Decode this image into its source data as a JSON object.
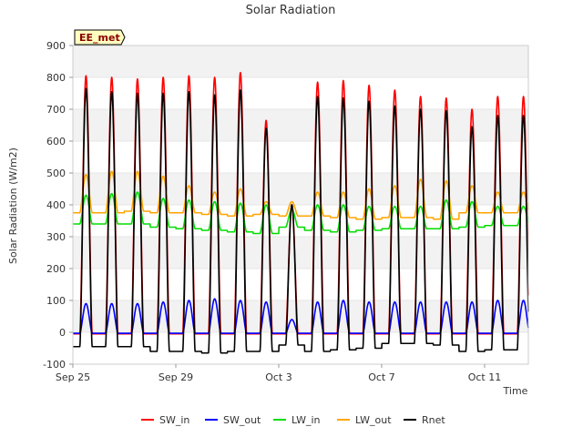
{
  "chart_data": {
    "type": "line",
    "title": "Solar Radiation",
    "xlabel": "Time",
    "ylabel": "Solar Radiation (W/m2)",
    "site_badge": "EE_met",
    "ylim": [
      -100,
      900
    ],
    "yticks": [
      -100,
      0,
      100,
      200,
      300,
      400,
      500,
      600,
      700,
      800,
      900
    ],
    "xlim": [
      0,
      17.7
    ],
    "xticks": [
      {
        "label": "Sep 25",
        "day": 0
      },
      {
        "label": "Sep 29",
        "day": 4
      },
      {
        "label": "Oct 3",
        "day": 8
      },
      {
        "label": "Oct 7",
        "day": 12
      },
      {
        "label": "Oct 11",
        "day": 16
      }
    ],
    "grid": "horizontal bands",
    "legend_position": "bottom",
    "series": [
      {
        "name": "SW_in",
        "color": "#ff0000",
        "night": -5,
        "peaks": [
          805,
          800,
          795,
          800,
          805,
          800,
          815,
          665,
          400,
          785,
          790,
          775,
          760,
          740,
          735,
          700,
          740
        ]
      },
      {
        "name": "SW_out",
        "color": "#0000ff",
        "night": -3,
        "peaks": [
          90,
          90,
          90,
          95,
          100,
          105,
          100,
          95,
          40,
          95,
          100,
          95,
          95,
          95,
          95,
          95,
          100
        ]
      },
      {
        "name": "LW_in",
        "color": "#00dd00",
        "night": [
          340,
          340,
          340,
          330,
          325,
          320,
          315,
          310,
          330,
          320,
          315,
          320,
          325,
          325,
          325,
          330,
          335
        ],
        "peaks": [
          430,
          435,
          440,
          420,
          415,
          410,
          405,
          400,
          385,
          400,
          400,
          395,
          395,
          395,
          415,
          410,
          395
        ]
      },
      {
        "name": "LW_out",
        "color": "#ffa500",
        "night": [
          375,
          375,
          380,
          375,
          375,
          370,
          365,
          370,
          365,
          365,
          360,
          355,
          360,
          360,
          355,
          375,
          375
        ],
        "peaks": [
          495,
          505,
          505,
          490,
          460,
          440,
          450,
          410,
          410,
          440,
          440,
          450,
          460,
          480,
          475,
          460,
          440
        ]
      },
      {
        "name": "Rnet",
        "color": "#000000",
        "night": [
          -45,
          -45,
          -45,
          -60,
          -60,
          -65,
          -60,
          -60,
          -40,
          -60,
          -55,
          -50,
          -35,
          -35,
          -40,
          -60,
          -55
        ],
        "peaks": [
          765,
          755,
          750,
          750,
          755,
          745,
          760,
          640,
          400,
          740,
          735,
          725,
          710,
          700,
          695,
          645,
          680
        ]
      }
    ]
  }
}
